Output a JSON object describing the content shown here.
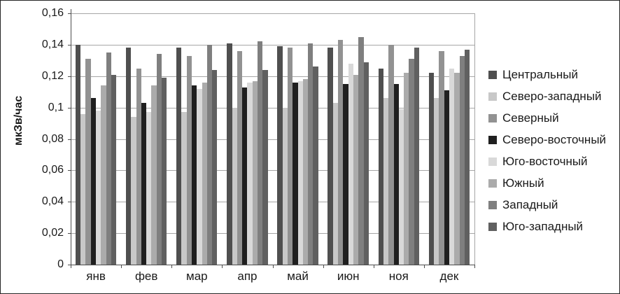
{
  "chart_data": {
    "type": "bar",
    "title": "",
    "ylabel": "мкЗв/час",
    "xlabel": "",
    "ylim": [
      0,
      0.16
    ],
    "ytick_step": 0.02,
    "ytick_labels": [
      "0",
      "0,02",
      "0,04",
      "0,06",
      "0,08",
      "0,1",
      "0,12",
      "0,14",
      "0,16"
    ],
    "grid": true,
    "legend_position": "right",
    "categories": [
      "янв",
      "фев",
      "мар",
      "апр",
      "май",
      "июн",
      "ноя",
      "дек"
    ],
    "series": [
      {
        "name": "Центральный",
        "color": "#4f4f4f",
        "values": [
          0.14,
          0.138,
          0.138,
          0.141,
          0.139,
          0.138,
          0.125,
          0.122
        ]
      },
      {
        "name": "Северо-западный",
        "color": "#c8c8c8",
        "values": [
          0.096,
          0.094,
          0.097,
          0.1,
          0.1,
          0.103,
          0.106,
          0.106
        ]
      },
      {
        "name": "Северный",
        "color": "#929292",
        "values": [
          0.131,
          0.125,
          0.133,
          0.136,
          0.138,
          0.143,
          0.14,
          0.136
        ]
      },
      {
        "name": "Северо-восточный",
        "color": "#1f1f1f",
        "values": [
          0.106,
          0.103,
          0.114,
          0.113,
          0.116,
          0.115,
          0.115,
          0.111
        ]
      },
      {
        "name": "Юго-восточный",
        "color": "#d9d9d9",
        "values": [
          0.098,
          0.097,
          0.112,
          0.116,
          0.117,
          0.128,
          0.099,
          0.125
        ]
      },
      {
        "name": "Южный",
        "color": "#ababab",
        "values": [
          0.114,
          0.114,
          0.116,
          0.117,
          0.118,
          0.121,
          0.122,
          0.122
        ]
      },
      {
        "name": "Западный",
        "color": "#7f7f7f",
        "values": [
          0.135,
          0.134,
          0.14,
          0.142,
          0.141,
          0.145,
          0.131,
          0.133
        ]
      },
      {
        "name": "Юго-западный",
        "color": "#606060",
        "values": [
          0.121,
          0.119,
          0.124,
          0.124,
          0.126,
          0.129,
          0.138,
          0.137
        ]
      }
    ]
  }
}
